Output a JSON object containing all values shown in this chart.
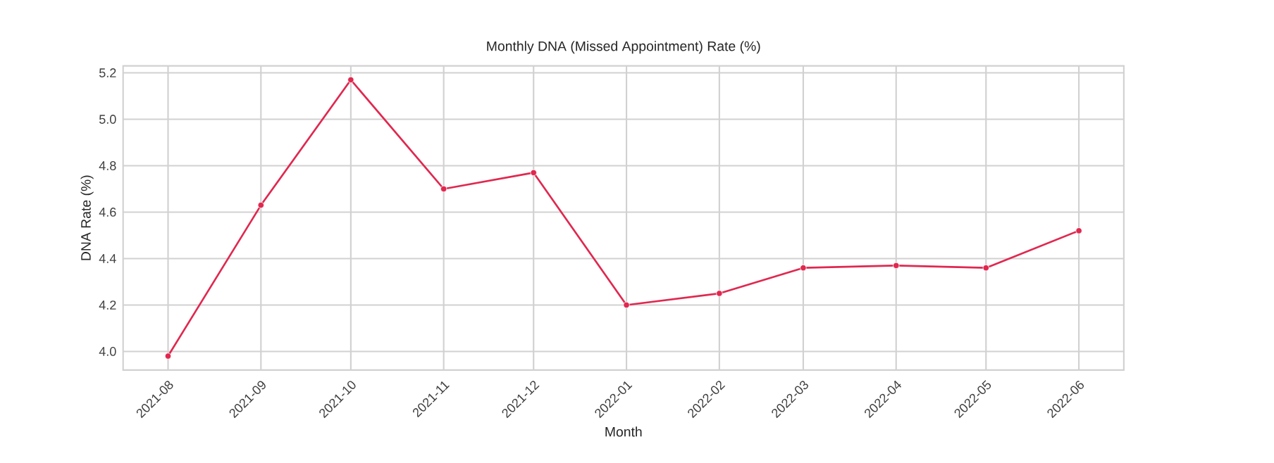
{
  "chart_data": {
    "type": "line",
    "title": "Monthly DNA (Missed Appointment) Rate (%)",
    "xlabel": "Month",
    "ylabel": "DNA Rate (%)",
    "x": [
      "2021-08",
      "2021-09",
      "2021-10",
      "2021-11",
      "2021-12",
      "2022-01",
      "2022-02",
      "2022-03",
      "2022-04",
      "2022-05",
      "2022-06"
    ],
    "series": [
      {
        "color": "#e0284f",
        "values": [
          3.98,
          4.63,
          5.17,
          4.7,
          4.77,
          4.2,
          4.25,
          4.36,
          4.37,
          4.36,
          4.52
        ]
      }
    ],
    "xlim": [
      "2021-07-17",
      "2022-06-16"
    ],
    "ylim": [
      3.92,
      5.23
    ],
    "xticks": [
      "2021-08",
      "2021-09",
      "2021-10",
      "2021-11",
      "2021-12",
      "2022-01",
      "2022-02",
      "2022-03",
      "2022-04",
      "2022-05",
      "2022-06"
    ],
    "yticks": [
      {
        "value": 4,
        "label": "4.0"
      },
      4.2,
      4.4,
      4.6,
      4.8,
      {
        "value": 5,
        "label": "5.0"
      },
      5.2
    ],
    "grid": true,
    "marker": "circle",
    "line_style": "solid"
  }
}
